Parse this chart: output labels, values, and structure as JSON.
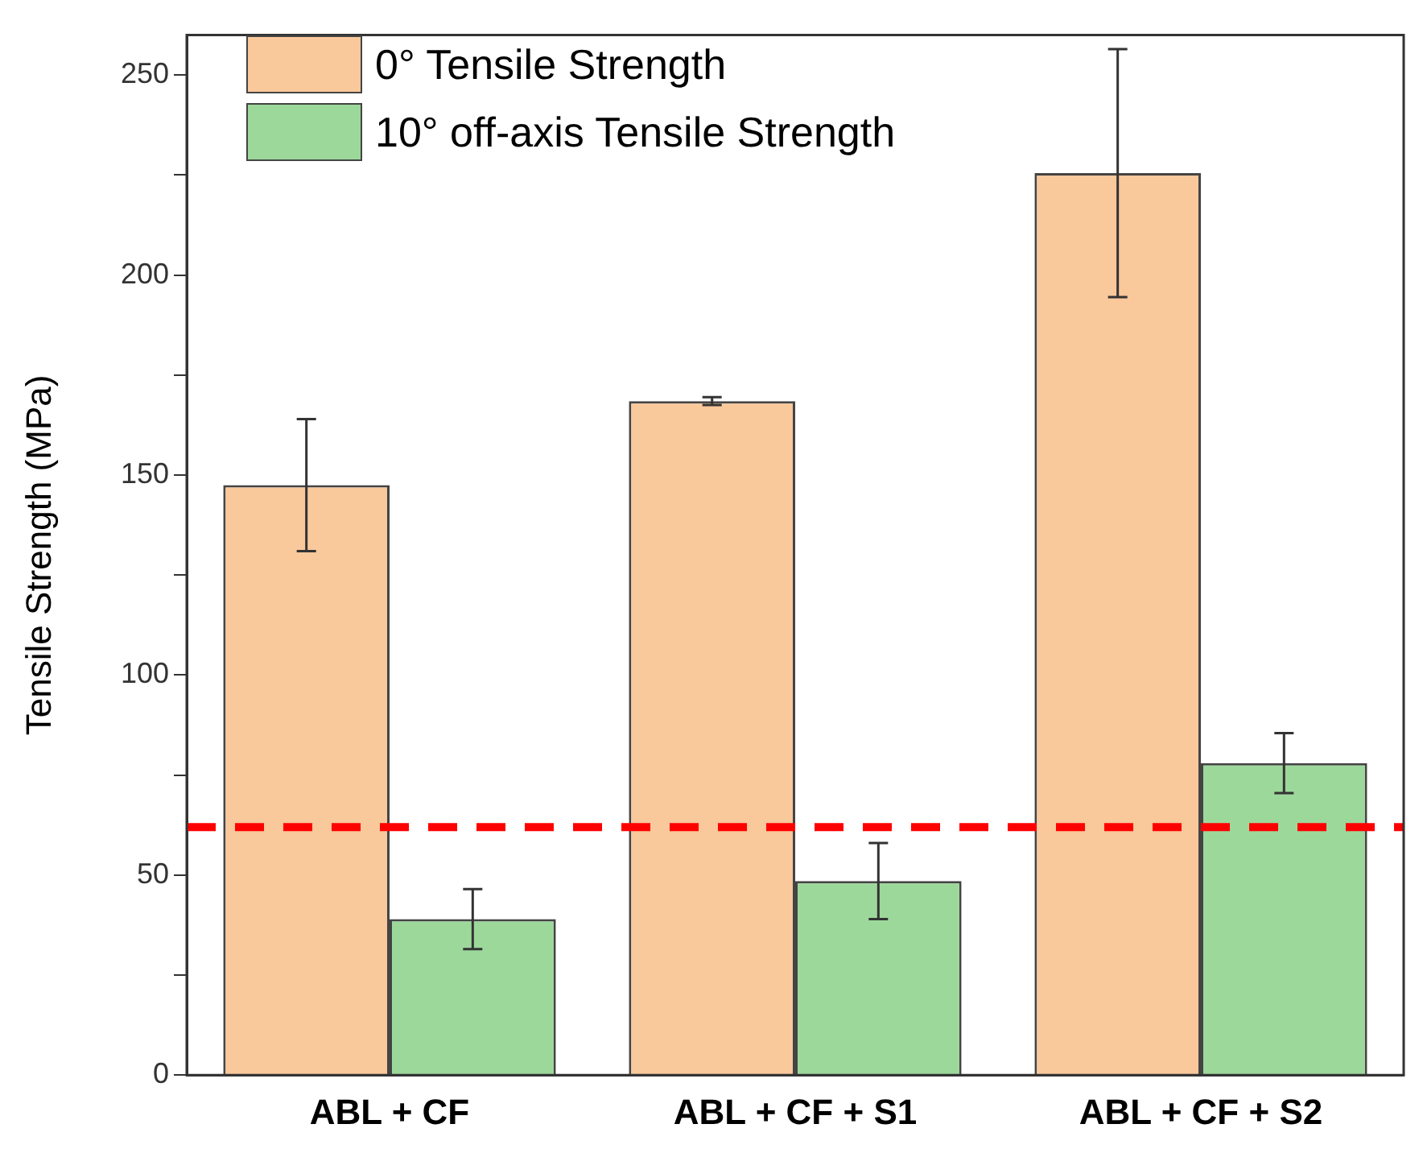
{
  "chart_data": {
    "type": "bar",
    "ylabel": "Tensile Strength (MPa)",
    "categories": [
      "ABL + CF",
      "ABL + CF + S1",
      "ABL + CF + S2"
    ],
    "series": [
      {
        "name": "0° Tensile Strength",
        "color": "#f9c89b",
        "values": [
          147.5,
          168.5,
          225.5
        ],
        "errors": [
          16.5,
          1,
          31
        ]
      },
      {
        "name": "10° off-axis Tensile Strength",
        "color": "#9dd89b",
        "values": [
          39,
          48.5,
          78
        ],
        "errors": [
          7.5,
          9.5,
          7.5
        ]
      }
    ],
    "ylim": [
      0,
      260
    ],
    "yticks": [
      0,
      {
        "value": 25,
        "label": null
      },
      50,
      {
        "value": 75,
        "label": null
      },
      100,
      {
        "value": 125,
        "label": null
      },
      150,
      {
        "value": 175,
        "label": null
      },
      200,
      {
        "value": 225,
        "label": null
      },
      250
    ],
    "ref_lines": [
      {
        "axis": "y",
        "value": 62,
        "color": "#ff0000",
        "line_style": "dashed"
      }
    ],
    "legend": "top left",
    "grid": false
  }
}
